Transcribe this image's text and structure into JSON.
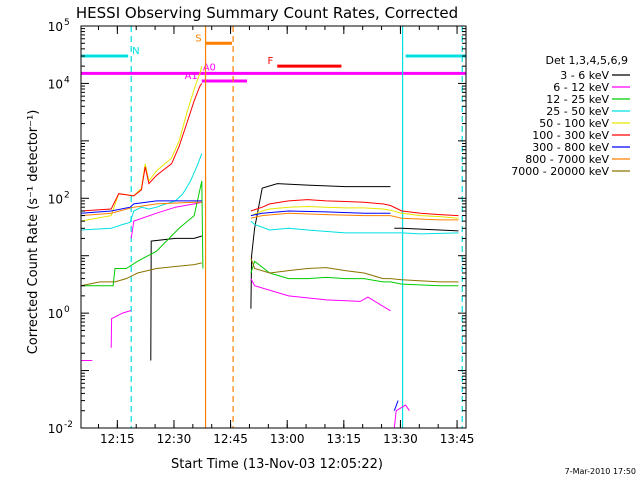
{
  "chart_data": {
    "type": "line",
    "title": "HESSI Observing Summary Count Rates, Corrected",
    "xlabel": "Start Time (13-Nov-03 12:05:22)",
    "ylabel": "Corrected Count Rate (s⁻¹ detector⁻¹)",
    "x_unit": "minutes after 12:05:22 on 13-Nov-03",
    "xlim": [
      0,
      102
    ],
    "ylim": [
      0.01,
      100000
    ],
    "yscale": "log",
    "x_ticks": [
      {
        "value": 9.63,
        "label": "12:15"
      },
      {
        "value": 24.63,
        "label": "12:30"
      },
      {
        "value": 39.63,
        "label": "12:45"
      },
      {
        "value": 54.63,
        "label": "13:00"
      },
      {
        "value": 69.63,
        "label": "13:15"
      },
      {
        "value": 84.63,
        "label": "13:30"
      },
      {
        "value": 99.63,
        "label": "13:45"
      }
    ],
    "y_ticks": [
      {
        "value": 0.01,
        "base": "10",
        "exp": "-2"
      },
      {
        "value": 1,
        "base": "10",
        "exp": "0"
      },
      {
        "value": 100,
        "base": "10",
        "exp": "2"
      },
      {
        "value": 10000,
        "base": "10",
        "exp": "4"
      },
      {
        "value": 100000,
        "base": "10",
        "exp": "5"
      }
    ],
    "legend": {
      "title": "Det 1,3,4,5,6,9",
      "placement": "right",
      "entries": [
        {
          "label": "3 - 6 keV",
          "color": "#000000"
        },
        {
          "label": "6 - 12 keV",
          "color": "#ff00ff"
        },
        {
          "label": "12 - 25 keV",
          "color": "#00cc00"
        },
        {
          "label": "25 - 50 keV",
          "color": "#00e0e0"
        },
        {
          "label": "50 - 100 keV",
          "color": "#e6e600"
        },
        {
          "label": "100 - 300 keV",
          "color": "#ff0000"
        },
        {
          "label": "300 - 800 keV",
          "color": "#0000ff"
        },
        {
          "label": "800 - 7000 keV",
          "color": "#ff8000"
        },
        {
          "label": "7000 - 20000 keV",
          "color": "#8b7300"
        }
      ]
    },
    "series": [
      {
        "label": "3 - 6 keV",
        "color": "#000000",
        "segments": [
          [
            [
              18.5,
              0.15
            ],
            [
              18.6,
              18
            ],
            [
              25,
              20
            ],
            [
              30,
              20
            ],
            [
              32,
              22
            ]
          ],
          [
            [
              45,
              1.2
            ],
            [
              45.2,
              10
            ],
            [
              46,
              30
            ],
            [
              48,
              150
            ],
            [
              52,
              180
            ],
            [
              60,
              170
            ],
            [
              70,
              160
            ],
            [
              82,
              160
            ]
          ],
          [
            [
              83,
              30
            ],
            [
              85,
              30
            ],
            [
              95,
              28
            ],
            [
              100,
              27
            ]
          ]
        ]
      },
      {
        "label": "6 - 12 keV",
        "color": "#ff00ff",
        "segments": [
          [
            [
              0,
              0.15
            ],
            [
              3,
              0.15
            ]
          ],
          [
            [
              8,
              0.25
            ],
            [
              8.1,
              0.8
            ],
            [
              11,
              1.0
            ],
            [
              13,
              1.1
            ],
            [
              13.3,
              1.1
            ]
          ],
          [
            [
              13.3,
              20
            ],
            [
              14,
              40
            ],
            [
              20,
              55
            ],
            [
              25,
              70
            ],
            [
              30,
              80
            ],
            [
              32,
              85
            ]
          ],
          [
            [
              45,
              4
            ],
            [
              46,
              3
            ],
            [
              55,
              2.0
            ],
            [
              65,
              1.7
            ],
            [
              74,
              1.6
            ],
            [
              76,
              1.9
            ],
            [
              82,
              1.1
            ]
          ],
          [
            [
              83,
              0.01
            ],
            [
              83.5,
              0.02
            ],
            [
              86,
              0.025
            ],
            [
              87,
              0.02
            ]
          ]
        ]
      },
      {
        "label": "12 - 25 keV",
        "color": "#00cc00",
        "segments": [
          [
            [
              0,
              3
            ],
            [
              8,
              3
            ],
            [
              8.5,
              3
            ],
            [
              9,
              6
            ],
            [
              12,
              6
            ],
            [
              15,
              8
            ],
            [
              20,
              12
            ],
            [
              26,
              30
            ],
            [
              30,
              50
            ],
            [
              31,
              100
            ],
            [
              32,
              200
            ],
            [
              32.3,
              6
            ]
          ],
          [
            [
              45,
              5
            ],
            [
              46,
              8
            ],
            [
              50,
              5
            ],
            [
              55,
              4
            ],
            [
              60,
              4
            ],
            [
              65,
              4.2
            ],
            [
              70,
              4
            ],
            [
              75,
              4
            ],
            [
              80,
              3.5
            ],
            [
              82,
              3.5
            ],
            [
              85,
              3.2
            ],
            [
              95,
              3
            ],
            [
              100,
              3
            ]
          ]
        ]
      },
      {
        "label": "25 - 50 keV",
        "color": "#00e0e0",
        "segments": [
          [
            [
              0,
              28
            ],
            [
              8,
              30
            ],
            [
              11,
              35
            ],
            [
              13,
              38
            ],
            [
              14,
              60
            ],
            [
              16,
              70
            ],
            [
              18,
              65
            ],
            [
              20,
              70
            ],
            [
              22,
              78
            ],
            [
              25,
              90
            ],
            [
              27,
              120
            ],
            [
              29,
              200
            ],
            [
              30,
              280
            ],
            [
              31,
              400
            ],
            [
              32,
              600
            ]
          ],
          [
            [
              45,
              40
            ],
            [
              46,
              35
            ],
            [
              50,
              28
            ],
            [
              55,
              30
            ],
            [
              60,
              28
            ],
            [
              70,
              25
            ],
            [
              80,
              25
            ],
            [
              82,
              25
            ],
            [
              85,
              25
            ],
            [
              90,
              24
            ],
            [
              100,
              25
            ]
          ]
        ]
      },
      {
        "label": "50 - 100 keV",
        "color": "#e6e600",
        "segments": [
          [
            [
              0,
              40
            ],
            [
              8,
              50
            ],
            [
              10,
              120
            ],
            [
              14,
              110
            ],
            [
              16,
              150
            ],
            [
              17,
              400
            ],
            [
              18,
              200
            ],
            [
              20,
              300
            ],
            [
              24,
              500
            ],
            [
              26,
              1000
            ],
            [
              28,
              3000
            ],
            [
              30,
              8000
            ],
            [
              31.5,
              15000
            ],
            [
              32,
              20000
            ]
          ],
          [
            [
              45,
              50
            ],
            [
              48,
              60
            ],
            [
              50,
              65
            ],
            [
              55,
              70
            ],
            [
              60,
              72
            ],
            [
              65,
              70
            ],
            [
              70,
              68
            ],
            [
              75,
              68
            ],
            [
              80,
              65
            ],
            [
              82,
              62
            ],
            [
              85,
              55
            ],
            [
              90,
              50
            ],
            [
              95,
              48
            ],
            [
              100,
              45
            ]
          ]
        ]
      },
      {
        "label": "100 - 300 keV",
        "color": "#ff0000",
        "segments": [
          [
            [
              0,
              60
            ],
            [
              8,
              65
            ],
            [
              10,
              120
            ],
            [
              14,
              110
            ],
            [
              16,
              140
            ],
            [
              17,
              350
            ],
            [
              18,
              180
            ],
            [
              20,
              250
            ],
            [
              24,
              400
            ],
            [
              26,
              800
            ],
            [
              28,
              2000
            ],
            [
              30,
              5000
            ],
            [
              31.5,
              9000
            ],
            [
              32,
              10000
            ]
          ],
          [
            [
              45,
              60
            ],
            [
              48,
              70
            ],
            [
              50,
              80
            ],
            [
              55,
              90
            ],
            [
              60,
              95
            ],
            [
              65,
              90
            ],
            [
              70,
              88
            ],
            [
              75,
              85
            ],
            [
              80,
              80
            ],
            [
              82,
              75
            ],
            [
              85,
              60
            ],
            [
              90,
              55
            ],
            [
              95,
              52
            ],
            [
              100,
              50
            ]
          ]
        ]
      },
      {
        "label": "300 - 800 keV",
        "color": "#0000ff",
        "segments": [
          [
            [
              0,
              55
            ],
            [
              8,
              60
            ],
            [
              13,
              70
            ],
            [
              14,
              80
            ],
            [
              20,
              90
            ],
            [
              30,
              90
            ],
            [
              32,
              90
            ]
          ],
          [
            [
              45,
              50
            ],
            [
              48,
              55
            ],
            [
              55,
              60
            ],
            [
              65,
              58
            ],
            [
              75,
              55
            ],
            [
              82,
              55
            ]
          ],
          [
            [
              83,
              0.02
            ],
            [
              84,
              0.03
            ]
          ]
        ]
      },
      {
        "label": "800 - 7000 keV",
        "color": "#ff8000",
        "segments": [
          [
            [
              0,
              50
            ],
            [
              8,
              55
            ],
            [
              14,
              70
            ],
            [
              20,
              80
            ],
            [
              30,
              85
            ],
            [
              32,
              85
            ]
          ],
          [
            [
              45,
              45
            ],
            [
              48,
              50
            ],
            [
              55,
              55
            ],
            [
              65,
              52
            ],
            [
              75,
              50
            ],
            [
              82,
              50
            ],
            [
              85,
              45
            ],
            [
              95,
              42
            ],
            [
              100,
              42
            ]
          ]
        ]
      },
      {
        "label": "7000 - 20000 keV",
        "color": "#8b7300",
        "segments": [
          [
            [
              0,
              3
            ],
            [
              5,
              3.5
            ],
            [
              9,
              3.5
            ],
            [
              12,
              4
            ],
            [
              15,
              5
            ],
            [
              20,
              6
            ],
            [
              25,
              6.5
            ],
            [
              30,
              7
            ],
            [
              32,
              7.5
            ]
          ],
          [
            [
              45,
              9
            ],
            [
              46,
              6
            ],
            [
              50,
              5
            ],
            [
              55,
              5.5
            ],
            [
              60,
              6
            ],
            [
              65,
              6.2
            ],
            [
              70,
              5.5
            ],
            [
              75,
              5
            ],
            [
              80,
              4
            ],
            [
              82,
              4
            ],
            [
              85,
              3.8
            ],
            [
              95,
              3.5
            ],
            [
              100,
              3.5
            ]
          ]
        ]
      }
    ],
    "annotations": [
      {
        "label": "N",
        "color": "#00e0e0",
        "bars": [
          [
            0,
            12.5
          ],
          [
            86,
            102
          ]
        ],
        "y": 30000
      },
      {
        "label": "S",
        "color": "#ff8000",
        "bars": [
          [
            33,
            40
          ]
        ],
        "y": 50000
      },
      {
        "label": "F",
        "color": "#ff0000",
        "bars": [
          [
            52,
            69
          ]
        ],
        "y": 20000
      },
      {
        "label": "A0",
        "color": "#ff00ff",
        "bars": [
          [
            0,
            102
          ]
        ],
        "y": 15000
      },
      {
        "label": "A1",
        "color": "#ff00ff",
        "bars": [
          [
            32,
            44
          ]
        ],
        "y": 11000
      }
    ],
    "vlines": [
      {
        "x": 13.3,
        "color": "#00e0e0",
        "style": "dashed"
      },
      {
        "x": 33.0,
        "color": "#ff8000",
        "style": "solid"
      },
      {
        "x": 40.3,
        "color": "#ff8000",
        "style": "dashed"
      },
      {
        "x": 85.2,
        "color": "#00e0e0",
        "style": "solid"
      },
      {
        "x": 101.0,
        "color": "#00e0e0",
        "style": "dashed"
      }
    ],
    "footer": "7-Mar-2010 17:50"
  }
}
